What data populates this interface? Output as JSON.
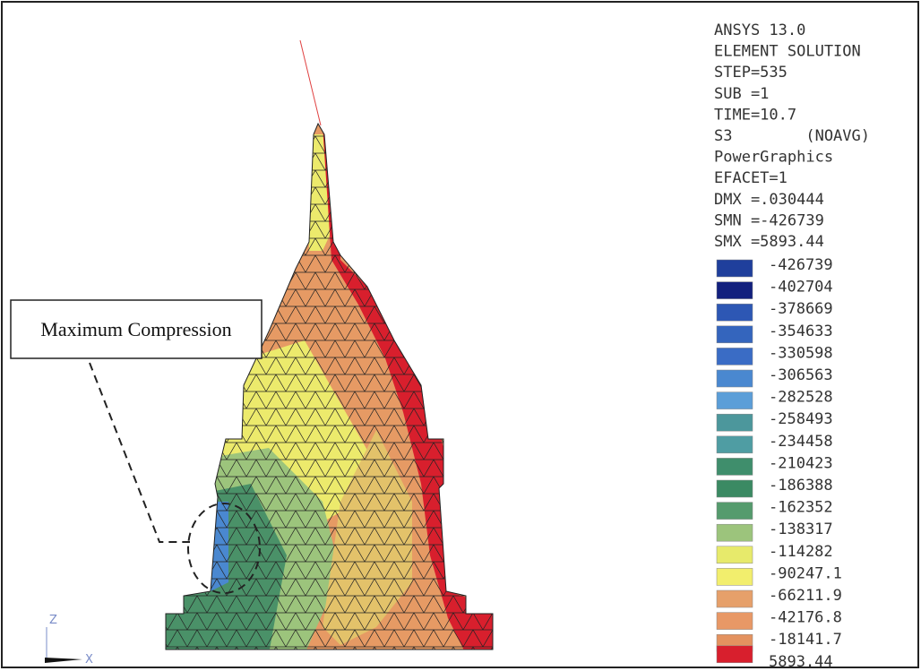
{
  "header": {
    "lines": [
      "ANSYS 13.0",
      "ELEMENT SOLUTION",
      "STEP=535",
      "SUB =1",
      "TIME=10.7",
      "S3        (NOAVG)",
      "PowerGraphics",
      "EFACET=1",
      "DMX =.030444",
      "SMN =-426739",
      "SMX =5893.44"
    ]
  },
  "legend": [
    {
      "label": "-426739",
      "color": "#1f3f9c"
    },
    {
      "label": "-402704",
      "color": "#12207e"
    },
    {
      "label": "-378669",
      "color": "#2d57b4"
    },
    {
      "label": "-354633",
      "color": "#3465bd"
    },
    {
      "label": "-330598",
      "color": "#3a6cc5"
    },
    {
      "label": "-306563",
      "color": "#4a88d0"
    },
    {
      "label": "-282528",
      "color": "#5b9ed8"
    },
    {
      "label": "-258493",
      "color": "#4c979c"
    },
    {
      "label": "-234458",
      "color": "#4f9da3"
    },
    {
      "label": "-210423",
      "color": "#3f8e6c"
    },
    {
      "label": "-186388",
      "color": "#3b8a63"
    },
    {
      "label": "-162352",
      "color": "#559b6d"
    },
    {
      "label": "-138317",
      "color": "#9cc47c"
    },
    {
      "label": "-114282",
      "color": "#e7ea6b"
    },
    {
      "label": "-90247.1",
      "color": "#f2ee6d"
    },
    {
      "label": "-66211.9",
      "color": "#e6a06a"
    },
    {
      "label": "-42176.8",
      "color": "#e89866"
    },
    {
      "label": "-18141.7",
      "color": "#e4925f"
    },
    {
      "label": "5893.44",
      "color": "#d81f2d"
    }
  ],
  "annotation": "Maximum Compression",
  "axes": {
    "z": "Z",
    "x": "X"
  }
}
